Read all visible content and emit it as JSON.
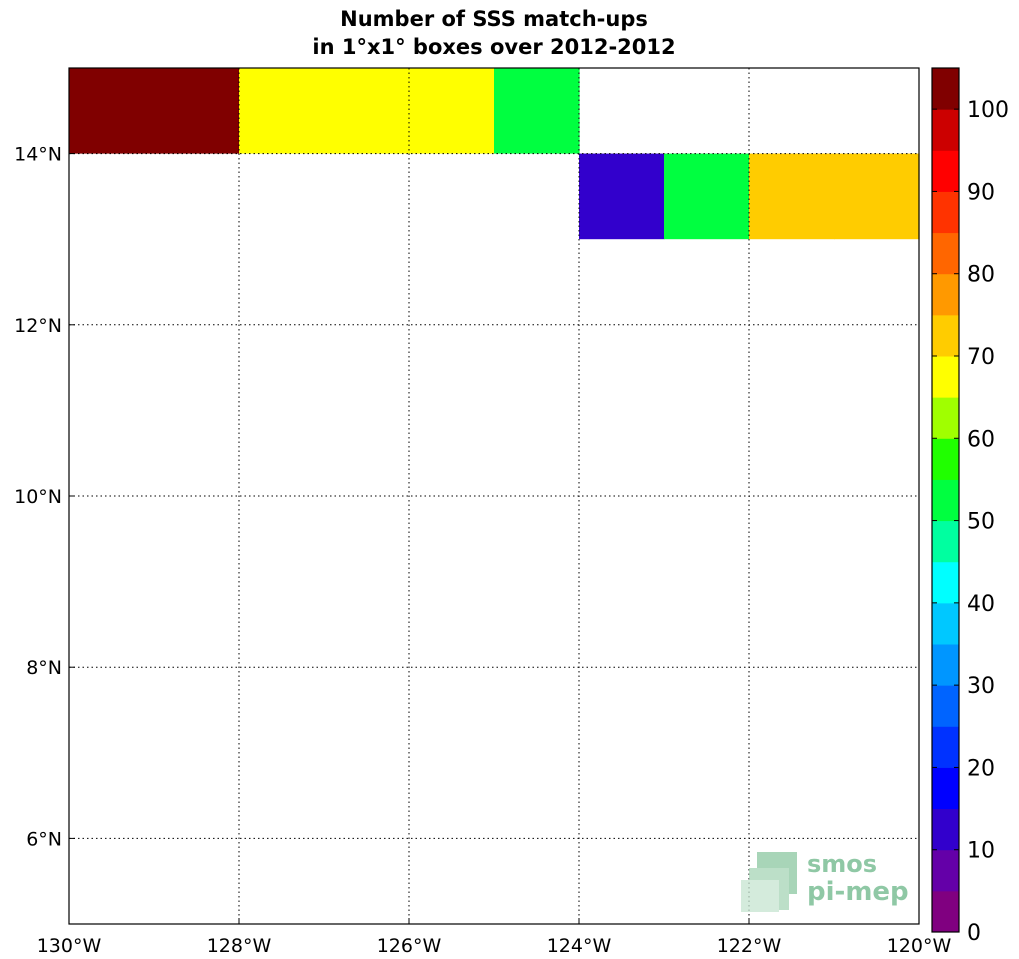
{
  "chart_data": {
    "type": "heatmap",
    "title": "Number of SSS match-ups",
    "subtitle": "in 1°x1° boxes over 2012-2012",
    "x_ticks": [
      {
        "value": -130,
        "label": "130°W"
      },
      {
        "value": -128,
        "label": "128°W"
      },
      {
        "value": -126,
        "label": "126°W"
      },
      {
        "value": -124,
        "label": "124°W"
      },
      {
        "value": -122,
        "label": "122°W"
      },
      {
        "value": -120,
        "label": "120°W"
      }
    ],
    "y_ticks": [
      {
        "value": 6,
        "label": "6°N"
      },
      {
        "value": 8,
        "label": "8°N"
      },
      {
        "value": 10,
        "label": "10°N"
      },
      {
        "value": 12,
        "label": "12°N"
      },
      {
        "value": 14,
        "label": "14°N"
      }
    ],
    "xlim": [
      -130,
      -120
    ],
    "ylim": [
      5,
      15
    ],
    "grid": true,
    "cells": [
      {
        "lon": -130,
        "lat": 14,
        "value": 100
      },
      {
        "lon": -129,
        "lat": 14,
        "value": 100
      },
      {
        "lon": -128,
        "lat": 14,
        "value": 68
      },
      {
        "lon": -127,
        "lat": 14,
        "value": 68
      },
      {
        "lon": -126,
        "lat": 14,
        "value": 68
      },
      {
        "lon": -125,
        "lat": 14,
        "value": 52
      },
      {
        "lon": -124,
        "lat": 13,
        "value": 12
      },
      {
        "lon": -123,
        "lat": 13,
        "value": 52
      },
      {
        "lon": -122,
        "lat": 13,
        "value": 73
      },
      {
        "lon": -121,
        "lat": 13,
        "value": 73
      }
    ],
    "colorbar": {
      "min": 0,
      "max": 100,
      "step": 5,
      "ticks": [
        "0",
        "10",
        "20",
        "30",
        "40",
        "50",
        "60",
        "70",
        "80",
        "90",
        "100"
      ],
      "colors": [
        "#800080",
        "#6400a8",
        "#3200cc",
        "#0000ff",
        "#0032ff",
        "#0064ff",
        "#0096ff",
        "#00c8ff",
        "#00ffff",
        "#00ffa0",
        "#00ff40",
        "#20ff00",
        "#a0ff00",
        "#ffff00",
        "#ffcc00",
        "#ff9900",
        "#ff6600",
        "#ff3300",
        "#ff0000",
        "#cc0000",
        "#800000"
      ]
    }
  },
  "logo": {
    "line1": "smos",
    "line2": "pi-mep"
  }
}
